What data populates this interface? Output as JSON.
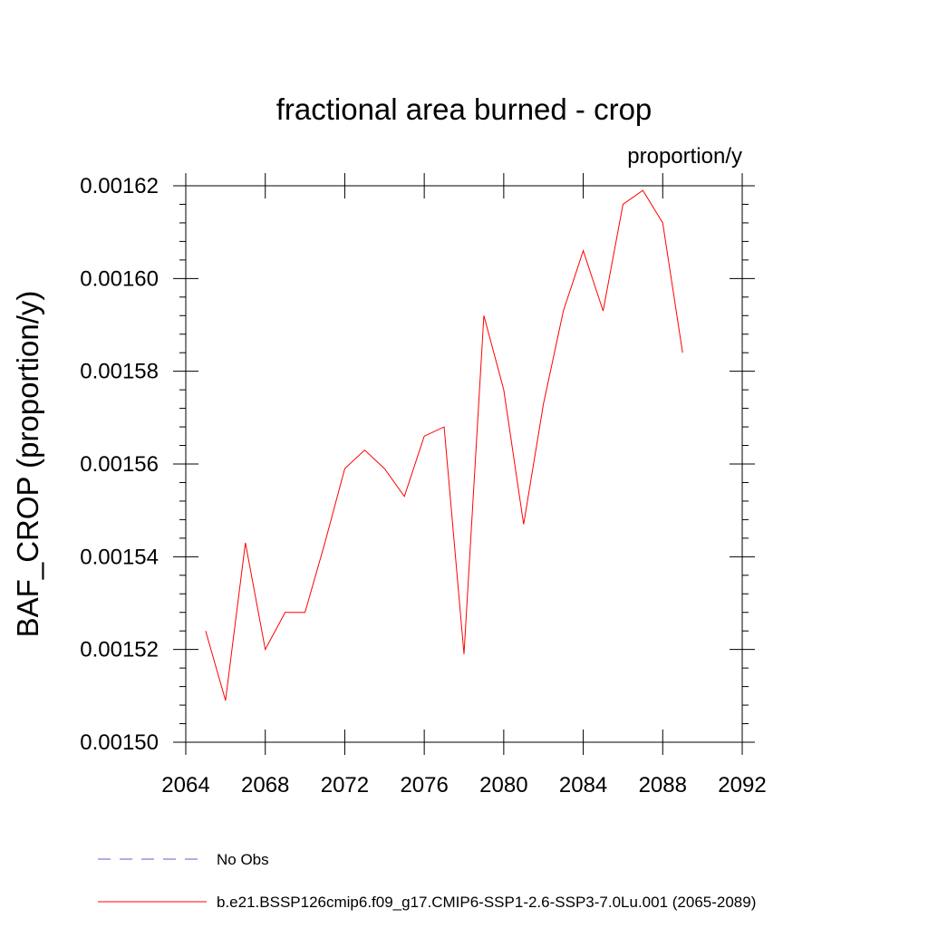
{
  "chart_data": {
    "type": "line",
    "title": "fractional area burned - crop",
    "units_label": "proportion/y",
    "ylabel": "BAF_CROP  (proportion/y)",
    "xlabel": "",
    "xlim": [
      2064,
      2092
    ],
    "ylim": [
      0.0015,
      0.00162
    ],
    "x_ticks": [
      2064,
      2068,
      2072,
      2076,
      2080,
      2084,
      2088,
      2092
    ],
    "x_tick_labels": [
      "2064",
      "2068",
      "2072",
      "2076",
      "2080",
      "2084",
      "2088",
      "2092"
    ],
    "y_ticks": [
      0.0015,
      0.00152,
      0.00154,
      0.00156,
      0.00158,
      0.0016,
      0.00162
    ],
    "y_tick_labels": [
      "0.00150",
      "0.00152",
      "0.00154",
      "0.00156",
      "0.00158",
      "0.00160",
      "0.00162"
    ],
    "grid": false,
    "legend_position": "bottom",
    "series": [
      {
        "name": "b.e21.BSSP126cmip6.f09_g17.CMIP6-SSP1-2.6-SSP3-7.0Lu.001 (2065-2089)",
        "color": "#ff0000",
        "style": "solid",
        "x": [
          2065,
          2066,
          2067,
          2068,
          2069,
          2070,
          2071,
          2072,
          2073,
          2074,
          2075,
          2076,
          2077,
          2078,
          2079,
          2080,
          2081,
          2082,
          2083,
          2084,
          2085,
          2086,
          2087,
          2088,
          2089
        ],
        "y": [
          0.001524,
          0.001509,
          0.001543,
          0.00152,
          0.001528,
          0.001528,
          0.001543,
          0.001559,
          0.001563,
          0.001559,
          0.001553,
          0.001566,
          0.001568,
          0.001519,
          0.001592,
          0.001576,
          0.001547,
          0.001573,
          0.001593,
          0.001606,
          0.001593,
          0.001616,
          0.001619,
          0.001612,
          0.001584
        ]
      }
    ],
    "legend": [
      {
        "label": "No Obs",
        "color": "#6a5acd",
        "style": "dashed"
      },
      {
        "label": "b.e21.BSSP126cmip6.f09_g17.CMIP6-SSP1-2.6-SSP3-7.0Lu.001 (2065-2089)",
        "color": "#ff0000",
        "style": "solid"
      }
    ]
  }
}
